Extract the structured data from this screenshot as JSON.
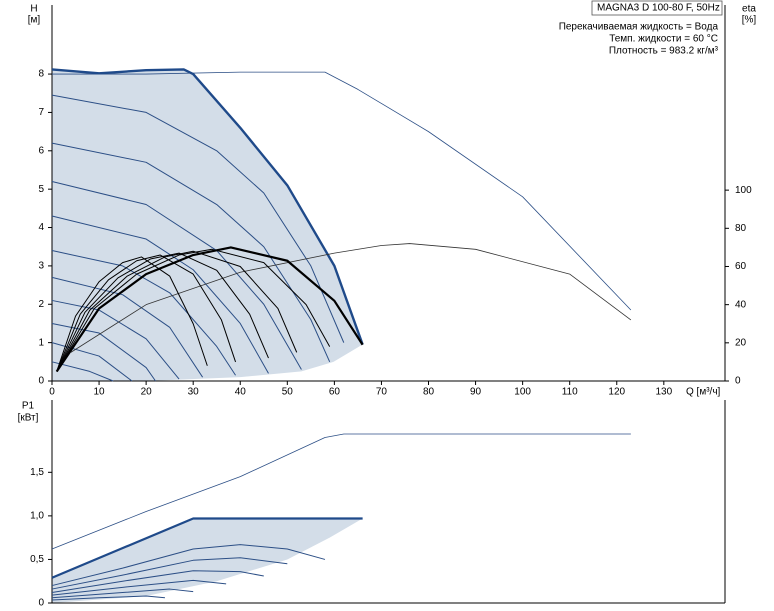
{
  "chart_data": [
    {
      "type": "line",
      "title": "MAGNA3 D 100-80 F, 50Hz",
      "annotations": [
        "Перекачиваемая жидкость = Вода",
        "Темп. жидкости = 60 °C",
        "Плотность = 983.2 кг/м³"
      ],
      "ylabel": "H",
      "yunit": "[м]",
      "y2label": "eta",
      "y2unit": "[%]",
      "xlabel": "Q [м³/ч]",
      "xlim": [
        0,
        143
      ],
      "ylim": [
        0,
        9.8
      ],
      "y2lim": [
        0,
        197
      ],
      "xticks": [
        0,
        10,
        20,
        30,
        40,
        50,
        60,
        70,
        80,
        90,
        100,
        110,
        120,
        130
      ],
      "yticks": [
        0,
        1,
        2,
        3,
        4,
        5,
        6,
        7,
        8
      ],
      "y2ticks": [
        0,
        20,
        40,
        60,
        80,
        100
      ],
      "area": {
        "color": "#d3dde8",
        "x": [
          0,
          10,
          20,
          28,
          30,
          40,
          50,
          60,
          66,
          59.8,
          53,
          40,
          20,
          0
        ],
        "values": [
          8.12,
          8.02,
          8.1,
          8.12,
          8.0,
          6.6,
          5.1,
          3.0,
          0.95,
          0.5,
          0.25,
          0.1,
          0,
          0
        ]
      },
      "series": [
        {
          "color": "#2c4f86",
          "width": 0.8,
          "x": [
            0,
            20,
            40,
            58,
            65,
            80,
            100,
            123
          ],
          "values": [
            8.0,
            8.0,
            8.05,
            8.05,
            7.6,
            6.5,
            4.8,
            1.85
          ]
        },
        {
          "color": "#2c4f86",
          "width": 1,
          "x": [
            0,
            20,
            35,
            45,
            55,
            62
          ],
          "values": [
            7.45,
            7.0,
            6.0,
            4.9,
            3.0,
            1.0
          ]
        },
        {
          "color": "#2c4f86",
          "width": 1,
          "x": [
            0,
            20,
            35,
            45,
            55,
            59
          ],
          "values": [
            6.2,
            5.7,
            4.6,
            3.5,
            1.6,
            0.5
          ]
        },
        {
          "color": "#2c4f86",
          "width": 1,
          "x": [
            0,
            20,
            35,
            45,
            53
          ],
          "values": [
            5.2,
            4.6,
            3.4,
            2.0,
            0.3
          ]
        },
        {
          "color": "#2c4f86",
          "width": 1,
          "x": [
            0,
            20,
            30,
            40,
            46
          ],
          "values": [
            4.3,
            3.7,
            2.9,
            1.5,
            0.2
          ]
        },
        {
          "color": "#2c4f86",
          "width": 1,
          "x": [
            0,
            15,
            25,
            35,
            39
          ],
          "values": [
            3.4,
            3.0,
            2.3,
            0.9,
            0.15
          ]
        },
        {
          "color": "#2c4f86",
          "width": 1,
          "x": [
            0,
            15,
            25,
            32
          ],
          "values": [
            2.7,
            2.25,
            1.4,
            0.1
          ]
        },
        {
          "color": "#2c4f86",
          "width": 1,
          "x": [
            0,
            10,
            20,
            27
          ],
          "values": [
            2.1,
            1.85,
            1.1,
            0.05
          ]
        },
        {
          "color": "#2c4f86",
          "width": 1,
          "x": [
            0,
            10,
            20,
            22
          ],
          "values": [
            1.5,
            1.25,
            0.35,
            0
          ]
        },
        {
          "color": "#2c4f86",
          "width": 1,
          "x": [
            0,
            10,
            17
          ],
          "values": [
            1.0,
            0.65,
            0
          ]
        },
        {
          "color": "#2c4f86",
          "width": 1,
          "x": [
            0,
            8,
            13
          ],
          "values": [
            0.5,
            0.25,
            0
          ]
        },
        {
          "color": "#1f4a8a",
          "width": 2.4,
          "x": [
            0,
            10,
            20,
            28,
            30,
            40,
            50,
            60,
            66
          ],
          "values": [
            8.12,
            8.02,
            8.1,
            8.12,
            8.0,
            6.6,
            5.1,
            3.0,
            0.95
          ]
        },
        {
          "color": "#333333",
          "width": 0.8,
          "axis": "y2",
          "x": [
            4,
            20,
            40,
            60,
            70,
            76,
            90,
            110,
            123
          ],
          "values": [
            15,
            40,
            57,
            67,
            71,
            72,
            69,
            56,
            32
          ]
        },
        {
          "color": "#000000",
          "width": 1,
          "axis": "y2",
          "x": [
            1,
            5,
            10,
            15,
            19,
            25,
            30,
            33
          ],
          "values": [
            5,
            34,
            52,
            62,
            65,
            55,
            30,
            8
          ]
        },
        {
          "color": "#000000",
          "width": 1,
          "axis": "y2",
          "x": [
            1,
            6,
            12,
            18,
            23,
            30,
            36,
            39
          ],
          "values": [
            5,
            35,
            53,
            63,
            66,
            56,
            32,
            10
          ]
        },
        {
          "color": "#000000",
          "width": 1,
          "axis": "y2",
          "x": [
            1,
            7,
            14,
            21,
            27,
            35,
            42,
            46
          ],
          "values": [
            5,
            36,
            54,
            64,
            67,
            58,
            35,
            12
          ]
        },
        {
          "color": "#000000",
          "width": 1,
          "axis": "y2",
          "x": [
            1,
            8,
            16,
            24,
            30,
            40,
            48,
            52
          ],
          "values": [
            5,
            37,
            55,
            65,
            68,
            60,
            38,
            15
          ]
        },
        {
          "color": "#000000",
          "width": 1,
          "axis": "y2",
          "x": [
            1,
            9,
            18,
            27,
            34,
            45,
            54,
            59
          ],
          "values": [
            5,
            38,
            56,
            66,
            69,
            62,
            40,
            18
          ]
        },
        {
          "color": "#000000",
          "width": 2.2,
          "axis": "y2",
          "x": [
            1,
            10,
            20,
            30,
            38,
            50,
            60,
            66
          ],
          "values": [
            5,
            38,
            56,
            66,
            70,
            63,
            42,
            19
          ]
        }
      ]
    },
    {
      "type": "line",
      "ylabel": "P1",
      "yunit": "[кВт]",
      "xlim": [
        0,
        143
      ],
      "ylim": [
        0,
        2.33
      ],
      "yticks": [
        0,
        {
          "value": 0.5,
          "label": "0,5"
        },
        {
          "value": 1,
          "label": "1,0"
        },
        {
          "value": 1.5,
          "label": "1,5"
        }
      ],
      "area": {
        "color": "#d3dde8",
        "x": [
          0,
          30,
          66,
          59,
          50,
          35,
          20,
          0
        ],
        "values": [
          0.29,
          0.97,
          0.97,
          0.75,
          0.5,
          0.25,
          0.08,
          0
        ]
      },
      "series": [
        {
          "color": "#2c4f86",
          "width": 0.8,
          "x": [
            0,
            20,
            40,
            58,
            62,
            123
          ],
          "values": [
            0.62,
            1.05,
            1.45,
            1.9,
            1.94,
            1.94
          ]
        },
        {
          "color": "#2c4f86",
          "width": 1,
          "x": [
            0,
            15,
            30,
            40,
            50,
            58
          ],
          "values": [
            0.2,
            0.4,
            0.62,
            0.67,
            0.62,
            0.5
          ]
        },
        {
          "color": "#2c4f86",
          "width": 1,
          "x": [
            0,
            15,
            30,
            40,
            50
          ],
          "values": [
            0.16,
            0.32,
            0.49,
            0.52,
            0.45
          ]
        },
        {
          "color": "#2c4f86",
          "width": 1,
          "x": [
            0,
            15,
            30,
            40,
            45
          ],
          "values": [
            0.12,
            0.25,
            0.37,
            0.36,
            0.31
          ]
        },
        {
          "color": "#2c4f86",
          "width": 1,
          "x": [
            0,
            15,
            30,
            37
          ],
          "values": [
            0.09,
            0.18,
            0.26,
            0.22
          ]
        },
        {
          "color": "#2c4f86",
          "width": 1,
          "x": [
            0,
            15,
            25,
            30
          ],
          "values": [
            0.06,
            0.12,
            0.16,
            0.13
          ]
        },
        {
          "color": "#2c4f86",
          "width": 1,
          "x": [
            0,
            10,
            20,
            24
          ],
          "values": [
            0.035,
            0.06,
            0.08,
            0.06
          ]
        },
        {
          "color": "#1f4a8a",
          "width": 2.2,
          "x": [
            0,
            30,
            66
          ],
          "values": [
            0.29,
            0.97,
            0.97
          ]
        }
      ]
    }
  ]
}
